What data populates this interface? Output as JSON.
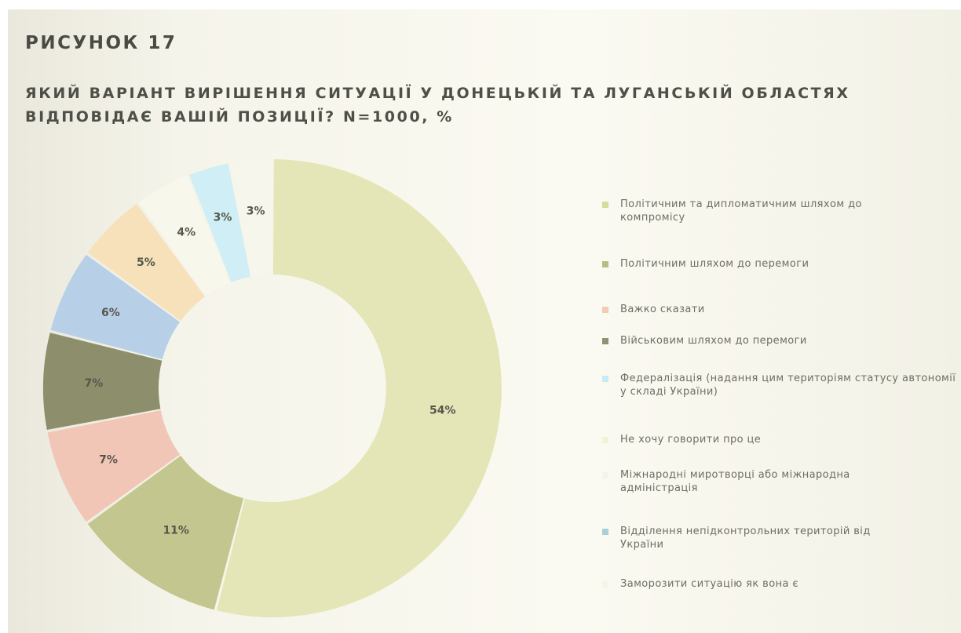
{
  "figure_label": "РИСУНОК 17",
  "title": "ЯКИЙ ВАРІАНТ ВИРІШЕННЯ СИТУАЦІЇ У ДОНЕЦЬКІЙ ТА ЛУГАНСЬКІЙ ОБЛАСТЯХ ВІДПОВІДАЄ ВАШІЙ ПОЗИЦІЇ? N=1000, %",
  "chart_data": {
    "type": "pie",
    "donut": true,
    "legend_position": "right",
    "categories": [
      "Політичним та дипломатичним шляхом до компромісу",
      "Політичним шляхом до перемоги",
      "Важко сказати",
      "Військовим шляхом до перемоги",
      "Федералізація (надання цим територіям статусу автономії у складі України)",
      "Не хочу говорити про це",
      "Міжнародні миротворці або міжнародна адміністрація",
      "Відділення непідконтрольних територій від України",
      "Заморозити ситуацію як вона є"
    ],
    "values": [
      54,
      11,
      7,
      7,
      6,
      5,
      4,
      3,
      3
    ],
    "value_labels": [
      "54%",
      "11%",
      "7%",
      "7%",
      "6%",
      "5%",
      "4%",
      "3%",
      "3%"
    ],
    "colors": [
      "#e4e6b7",
      "#c3c68e",
      "#f1c6b6",
      "#8d8f6c",
      "#b8d0e7",
      "#f6e1bb",
      "#f8f7ec",
      "#cfeef5",
      "#f7f6ec"
    ],
    "legend_swatch_colors": [
      "#d7dc9b",
      "#b4bd84",
      "#f2ccb2",
      "#8d9474",
      "#c8eaf4",
      "#f4f1d8",
      "#f5f4ea",
      "#a9cfd9",
      "#f5f4ea"
    ]
  }
}
